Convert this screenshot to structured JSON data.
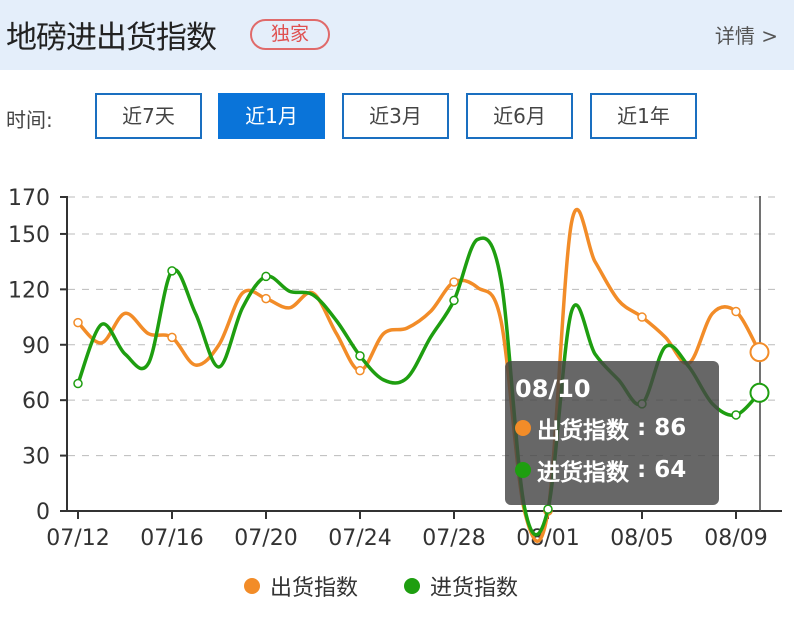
{
  "header": {
    "title": "地磅进出货指数",
    "badge": "独家",
    "detail": "详情 >"
  },
  "filter": {
    "label": "时间:",
    "options": [
      "近7天",
      "近1月",
      "近3月",
      "近6月",
      "近1年"
    ],
    "active": 1
  },
  "colors": {
    "accent": "#0a74d9",
    "out": "#f28c28",
    "in": "#1e9e10"
  },
  "tooltip": {
    "date": "08/10",
    "rows": [
      {
        "name": "出货指数",
        "value": "86"
      },
      {
        "name": "进货指数",
        "value": "64"
      }
    ]
  },
  "chart_data": {
    "type": "line",
    "x": [
      "07/12",
      "07/13",
      "07/14",
      "07/15",
      "07/16",
      "07/17",
      "07/18",
      "07/19",
      "07/20",
      "07/21",
      "07/22",
      "07/23",
      "07/24",
      "07/25",
      "07/26",
      "07/27",
      "07/28",
      "07/29",
      "07/30",
      "07/31",
      "08/01",
      "08/02",
      "08/03",
      "08/04",
      "08/05",
      "08/06",
      "08/07",
      "08/08",
      "08/09",
      "08/10"
    ],
    "xticks": [
      "07/12",
      "07/16",
      "07/20",
      "07/24",
      "07/28",
      "08/01",
      "08/05",
      "08/09"
    ],
    "yticks": [
      0,
      30,
      60,
      90,
      120,
      150,
      170
    ],
    "ylim": [
      0,
      170
    ],
    "grid": true,
    "legend": "bottom",
    "series": [
      {
        "name": "出货指数",
        "color": "#f28c28",
        "values": [
          102,
          91,
          107,
          96,
          94,
          79,
          90,
          118,
          115,
          110,
          118,
          96,
          76,
          96,
          99,
          108,
          124,
          121,
          103,
          0,
          0,
          156,
          135,
          114,
          105,
          94,
          80,
          107,
          108,
          86
        ]
      },
      {
        "name": "进货指数",
        "color": "#1e9e10",
        "values": [
          69,
          101,
          85,
          80,
          130,
          107,
          78,
          110,
          127,
          119,
          117,
          103,
          84,
          71,
          72,
          94,
          114,
          147,
          125,
          2,
          1,
          108,
          85,
          71,
          58,
          89,
          78,
          58,
          52,
          64
        ]
      }
    ]
  }
}
